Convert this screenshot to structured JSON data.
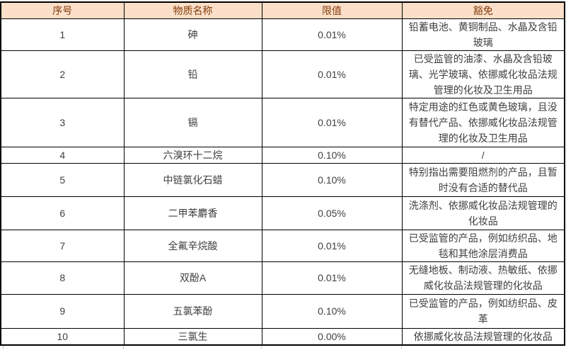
{
  "table": {
    "headers": {
      "no": "序号",
      "name": "物质名称",
      "limit": "限值",
      "exemption": "豁免"
    },
    "rows": [
      {
        "no": "1",
        "name": "砷",
        "limit": "0.01%",
        "exemption": "铅蓄电池、黄铜制品、水晶及含铅玻璃"
      },
      {
        "no": "2",
        "name": "铅",
        "limit": "0.01%",
        "exemption": "已受监管的油漆、水晶及含铅玻璃、光学玻璃、依挪威化妆品法规管理的化妆及卫生用品"
      },
      {
        "no": "3",
        "name": "镉",
        "limit": "0.01%",
        "exemption": "特定用途的红色或黄色玻璃，且没有替代产品、依挪威化妆品法规管理的化妆及卫生用品"
      },
      {
        "no": "4",
        "name": "六溴环十二烷",
        "limit": "0.10%",
        "exemption": "/"
      },
      {
        "no": "5",
        "name": "中链氯化石蜡",
        "limit": "0.10%",
        "exemption": "特别指出需要阻燃剂的产品，且暂时没有合适的替代品"
      },
      {
        "no": "6",
        "name": "二甲苯麝香",
        "limit": "0.05%",
        "exemption": "洗涤剂、依挪威化妆品法规管理的化妆品"
      },
      {
        "no": "7",
        "name": "全氟辛烷酸",
        "limit": "0.01%",
        "exemption": "已受监管的产品，例如纺织品、地毯和其他涂层消费品"
      },
      {
        "no": "8",
        "name": "双酚A",
        "limit": "0.01%",
        "exemption": "无缝地板、制动液、热敏纸、依挪威化妆品法规管理的化妆品"
      },
      {
        "no": "9",
        "name": "五氯苯酚",
        "limit": "0.10%",
        "exemption": "已受监管的产品，例如纺织品、皮革"
      },
      {
        "no": "10",
        "name": "三氯生",
        "limit": "0.00%",
        "exemption": "依挪威化妆品法规管理的化妆品"
      }
    ]
  },
  "colors": {
    "header_bg": "#fbdfc8",
    "header_text": "#843c0c",
    "body_text": "#3f3f3f",
    "border": "#000000"
  }
}
